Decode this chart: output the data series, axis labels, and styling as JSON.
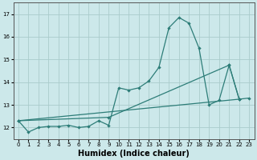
{
  "xlabel": "Humidex (Indice chaleur)",
  "bg_color": "#cce8ea",
  "grid_color": "#aacccc",
  "line_color": "#2d7d78",
  "xlim": [
    -0.5,
    23.5
  ],
  "ylim": [
    11.5,
    17.5
  ],
  "xticks": [
    0,
    1,
    2,
    3,
    4,
    5,
    6,
    7,
    8,
    9,
    10,
    11,
    12,
    13,
    14,
    15,
    16,
    17,
    18,
    19,
    20,
    21,
    22,
    23
  ],
  "yticks": [
    12,
    13,
    14,
    15,
    16,
    17
  ],
  "line1_x": [
    0,
    1,
    2,
    3,
    4,
    5,
    6,
    7,
    8,
    9,
    10,
    11,
    12,
    13,
    14,
    15,
    16,
    17,
    18,
    19,
    20,
    21,
    22
  ],
  "line1_y": [
    12.3,
    11.8,
    12.0,
    12.05,
    12.05,
    12.1,
    12.0,
    12.05,
    12.3,
    12.1,
    13.75,
    13.65,
    13.75,
    14.05,
    14.65,
    16.4,
    16.85,
    16.6,
    15.5,
    13.0,
    13.2,
    14.75,
    13.25
  ],
  "line2_x": [
    0,
    22,
    23
  ],
  "line2_y": [
    12.3,
    13.25,
    13.3
  ],
  "line3_x": [
    0,
    9,
    21,
    22
  ],
  "line3_y": [
    12.3,
    12.45,
    14.75,
    13.25
  ],
  "xlabel_fontsize": 7,
  "tick_fontsize": 5
}
